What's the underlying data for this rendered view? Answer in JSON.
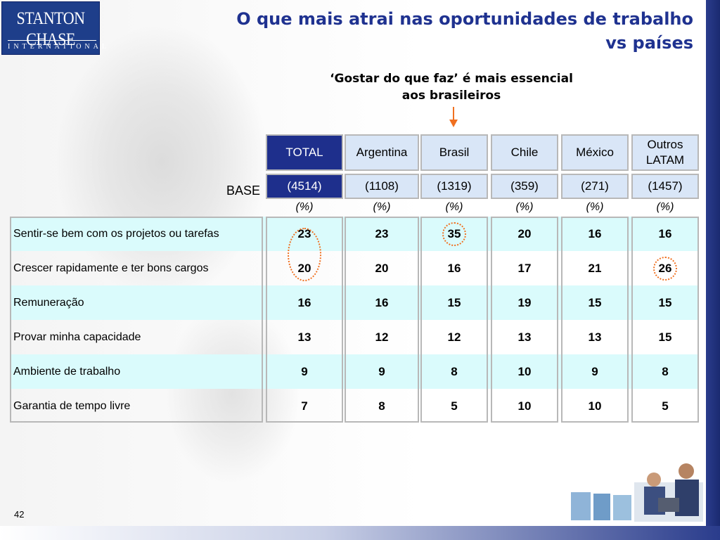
{
  "header": {
    "logo_line1": "STANTON CHASE",
    "logo_line2": "INTERNATIONAL",
    "title_line1": "O que mais atrai nas oportunidades de trabalho",
    "title_line2": "vs países"
  },
  "subtitle": {
    "line1": "‘Gostar do que faz’ é mais essencial",
    "line2": "aos brasileiros"
  },
  "colors": {
    "title": "#1f3290",
    "total_header": "#1e2f8c",
    "header_fill": "#d9e6f7",
    "row_band": "#dafbfc",
    "highlight": "#f07020"
  },
  "chart_data": {
    "type": "table",
    "base_label": "BASE",
    "unit_label": "(%)",
    "columns": [
      {
        "label_line1": "TOTAL",
        "label_line2": "",
        "base": "(4514)"
      },
      {
        "label_line1": "Argentina",
        "label_line2": "",
        "base": "(1108)"
      },
      {
        "label_line1": "Brasil",
        "label_line2": "",
        "base": "(1319)"
      },
      {
        "label_line1": "Chile",
        "label_line2": "",
        "base": "(359)"
      },
      {
        "label_line1": "México",
        "label_line2": "",
        "base": "(271)"
      },
      {
        "label_line1": "Outros",
        "label_line2": "LATAM",
        "base": "(1457)"
      }
    ],
    "rows": [
      {
        "label": "Sentir-se bem com os projetos ou tarefas",
        "values": [
          23,
          23,
          35,
          20,
          16,
          16
        ]
      },
      {
        "label": "Crescer rapidamente e ter bons cargos",
        "values": [
          20,
          20,
          16,
          17,
          21,
          26
        ]
      },
      {
        "label": "Remuneração",
        "values": [
          16,
          16,
          15,
          19,
          15,
          15
        ]
      },
      {
        "label": "Provar minha capacidade",
        "values": [
          13,
          12,
          12,
          13,
          13,
          15
        ]
      },
      {
        "label": "Ambiente de trabalho",
        "values": [
          9,
          9,
          8,
          10,
          9,
          8
        ]
      },
      {
        "label": "Garantia de tempo livre",
        "values": [
          7,
          8,
          5,
          10,
          10,
          5
        ]
      }
    ],
    "highlights": [
      {
        "rows": [
          0,
          1
        ],
        "column": 0
      },
      {
        "rows": [
          0
        ],
        "column": 2
      },
      {
        "rows": [
          1
        ],
        "column": 5
      }
    ]
  },
  "footer": {
    "page_number": "42"
  }
}
